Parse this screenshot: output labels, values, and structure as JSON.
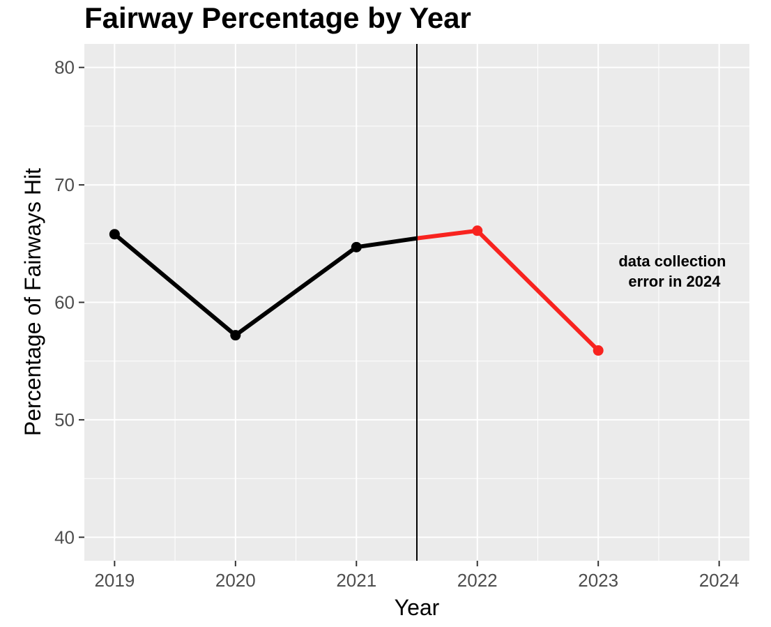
{
  "chart_data": {
    "type": "line",
    "title": "Fairway Percentage by Year",
    "xlabel": "Year",
    "ylabel": "Percentage of Fairways Hit",
    "xlim": [
      2018.75,
      2024.25
    ],
    "ylim": [
      38,
      82
    ],
    "x_ticks": [
      "2019",
      "2020",
      "2021",
      "2022",
      "2023",
      "2024"
    ],
    "y_ticks": [
      "40",
      "50",
      "60",
      "70",
      "80"
    ],
    "grid": true,
    "legend": "none",
    "background_color": "#ebebeb",
    "grid_color": "#ffffff",
    "divider": {
      "x": 2021.5,
      "color": "#000000"
    },
    "series": [
      {
        "color": "#000000",
        "x": [
          2019,
          2020,
          2021,
          2021.5
        ],
        "y": [
          65.8,
          57.2,
          64.7,
          65.45
        ],
        "points": [
          2019,
          2020,
          2021
        ]
      },
      {
        "color": "#f8231f",
        "x": [
          2021.5,
          2022,
          2023
        ],
        "y": [
          65.45,
          66.1,
          55.9
        ],
        "points": [
          2022,
          2023
        ]
      }
    ],
    "annotation": {
      "lines": [
        "data collection",
        "error in 2024"
      ],
      "x": 2023.63,
      "y": 61.8
    }
  }
}
